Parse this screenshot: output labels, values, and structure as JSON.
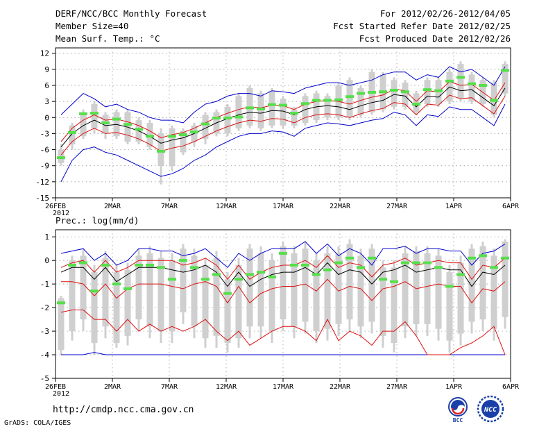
{
  "header": {
    "title": "DERF/NCC/BCC Monthly Forecast",
    "member_size": "Member Size=40",
    "variable": "Mean Surf. Temp.: °C",
    "forecast_period": "For 2012/02/26-2012/04/05",
    "refer_date": "Fcst Started Refer Date 2012/02/25",
    "produced_date": "Fcst Produced Date 2012/02/26"
  },
  "footer": {
    "url": "http://cmdp.ncc.cma.gov.cn",
    "credit": "GrADS: COLA/IGES",
    "logo_left_text": "BCC",
    "logo_right_text": "NCC"
  },
  "colors": {
    "box": "#cfcfcf",
    "mean": "#55e04a",
    "median": "#000000",
    "inner": "#dd1111",
    "outer": "#0000cc",
    "grid": "#888888"
  },
  "x_ticks": [
    "26FEB\n2012",
    "2MAR",
    "7MAR",
    "12MAR",
    "17MAR",
    "22MAR",
    "27MAR",
    "1APR",
    "6APR"
  ],
  "chart_data": [
    {
      "type": "line",
      "title": "Mean Surf. Temp.: °C",
      "xlabel": "",
      "ylabel": "°C",
      "days": 41,
      "xlim": [
        0,
        40
      ],
      "ylim": [
        -15,
        13
      ],
      "yticks": [
        12,
        9,
        6,
        3,
        0,
        -3,
        -6,
        -9,
        -12,
        -15
      ],
      "median": [
        -5.5,
        -3,
        -1.5,
        -0.5,
        -1.5,
        -1.3,
        -1.8,
        -2.5,
        -3.5,
        -4.8,
        -4.2,
        -3.8,
        -3,
        -2,
        -1,
        -0.2,
        0.5,
        1,
        0.8,
        1.3,
        1.2,
        0.5,
        1.5,
        2,
        2.2,
        2,
        1.5,
        2.2,
        2.8,
        3.2,
        4.3,
        4,
        2,
        4,
        3.8,
        5.7,
        5,
        5.2,
        3.7,
        2.2,
        5.5
      ],
      "inner_upper": [
        -4.5,
        -2,
        -0.5,
        0.5,
        -0.5,
        -0.3,
        -0.8,
        -1.5,
        -2.5,
        -3.8,
        -3.2,
        -2.8,
        -2,
        -1,
        0,
        0.8,
        1.5,
        2,
        1.8,
        2.3,
        2.2,
        1.5,
        2.5,
        3,
        3.2,
        3,
        2.5,
        3.2,
        3.8,
        4.2,
        5.3,
        5,
        3,
        5,
        4.8,
        6.7,
        6,
        6.2,
        4.7,
        3.2,
        6.5
      ],
      "inner_lower": [
        -7,
        -4.5,
        -3,
        -2,
        -3,
        -2.8,
        -3.3,
        -4,
        -5,
        -6.3,
        -5.7,
        -5.3,
        -4.5,
        -3.5,
        -2.5,
        -1.7,
        -1,
        -0.5,
        -0.7,
        -0.2,
        -0.3,
        -1,
        0,
        0.5,
        0.7,
        0.5,
        0,
        0.7,
        1.3,
        1.7,
        2.8,
        2.5,
        0.5,
        2.5,
        2.3,
        4.2,
        3.5,
        3.7,
        2.2,
        0.7,
        4
      ],
      "outer_upper": [
        0.5,
        2.5,
        4.5,
        3.5,
        2,
        2.5,
        1.5,
        1,
        0,
        -0.5,
        -0.5,
        -1,
        1,
        2.5,
        3,
        4,
        4.5,
        4.5,
        4,
        5,
        4.8,
        4.5,
        5.5,
        6,
        6.5,
        6.5,
        6,
        6.5,
        7,
        8,
        8.5,
        8.5,
        7,
        8,
        7.5,
        9.5,
        8.5,
        9,
        7.5,
        6,
        9.5
      ],
      "outer_lower": [
        -12,
        -8,
        -6,
        -5.5,
        -6.5,
        -7,
        -8,
        -9,
        -10,
        -11,
        -10.5,
        -9.5,
        -8,
        -7,
        -5.5,
        -4.5,
        -3.5,
        -3,
        -3,
        -2.5,
        -2.7,
        -3.5,
        -2,
        -1.5,
        -1,
        -1.2,
        -1.5,
        -1,
        -0.5,
        -0.2,
        1,
        0.5,
        -1.5,
        0.5,
        0.2,
        2,
        1.5,
        1.5,
        0,
        -1.5,
        2.5
      ],
      "mean": [
        -7.5,
        -2.8,
        0.7,
        0.8,
        -1,
        -0.3,
        -1.3,
        -2.2,
        -3.5,
        -6.3,
        -3.5,
        -3.2,
        -2.7,
        -1.2,
        -0.1,
        -0.1,
        0.1,
        1.8,
        1.6,
        2.4,
        2.3,
        0.8,
        2.6,
        3.2,
        3.2,
        3.3,
        3.9,
        4.5,
        4.7,
        4.8,
        5.1,
        4.8,
        2.5,
        5.2,
        5,
        6.8,
        7.5,
        6.3,
        6,
        3.2,
        8.8
      ],
      "box_top": [
        -6,
        -1.5,
        1,
        2.5,
        0.5,
        1,
        1,
        -0.5,
        -1,
        -3,
        -2,
        -2.5,
        -1.5,
        0.5,
        1,
        2,
        4,
        5.5,
        4.5,
        5,
        3.5,
        1.5,
        4,
        4.5,
        4,
        6,
        7,
        5.5,
        8.5,
        8,
        7,
        6.5,
        4.5,
        7,
        7,
        8.5,
        10,
        8,
        7,
        6.5,
        10
      ],
      "box_bottom": [
        -8.5,
        -5,
        -3.5,
        -2,
        -3,
        -3.5,
        -4.5,
        -4.5,
        -5.5,
        -9,
        -9,
        -6.5,
        -4.5,
        -4,
        -3,
        -3,
        -2,
        -1.5,
        -2,
        -1.5,
        -1.5,
        -1.5,
        -1,
        -0.5,
        0,
        0,
        0,
        0.5,
        1,
        1.5,
        2,
        2,
        1,
        2.5,
        2.5,
        3,
        3.5,
        3,
        2.5,
        0.5,
        4.5
      ],
      "whisker_top": [
        -5,
        -1,
        1.5,
        3,
        1,
        1.5,
        1.5,
        0,
        -0.5,
        -2,
        -1.5,
        -2,
        -1,
        1,
        1.5,
        2.5,
        4.5,
        6,
        5,
        5.5,
        4,
        2,
        4.5,
        5,
        4.5,
        6.5,
        7.5,
        6,
        9,
        8.5,
        7.5,
        7,
        5,
        7.5,
        7.5,
        9,
        10.5,
        8.5,
        7.5,
        7,
        10.5
      ],
      "whisker_bottom": [
        -9,
        -6,
        -4,
        -3,
        -4,
        -4,
        -5,
        -5,
        -6,
        -12.5,
        -10,
        -7,
        -5.5,
        -5,
        -3.5,
        -3.5,
        -2.5,
        -2,
        -2.5,
        -2,
        -2,
        -2,
        -1.5,
        -1,
        -0.5,
        -0.5,
        -0.5,
        0,
        0.5,
        1,
        1.5,
        1.5,
        0.5,
        2,
        2,
        2.5,
        3,
        2.5,
        2,
        0,
        4
      ]
    },
    {
      "type": "line",
      "title": "Prec.: log(mm/d)",
      "xlabel": "",
      "ylabel": "log(mm/d)",
      "days": 41,
      "xlim": [
        0,
        40
      ],
      "ylim": [
        -5,
        1.3
      ],
      "yticks": [
        1,
        0,
        -1,
        -2,
        -3,
        -4,
        -5
      ],
      "median": [
        -0.5,
        -0.3,
        -0.3,
        -0.8,
        -0.3,
        -0.9,
        -0.6,
        -0.3,
        -0.3,
        -0.3,
        -0.4,
        -0.5,
        -0.4,
        -0.2,
        -0.5,
        -1.1,
        -0.5,
        -1.1,
        -0.8,
        -0.6,
        -0.5,
        -0.5,
        -0.3,
        -0.6,
        -0.1,
        -0.6,
        -0.4,
        -0.5,
        -1,
        -0.5,
        -0.4,
        -0.2,
        -0.5,
        -0.4,
        -0.3,
        -0.4,
        -0.4,
        -1.1,
        -0.5,
        -0.6,
        -0.2
      ],
      "inner_upper": [
        -0.3,
        -0.1,
        0,
        -0.5,
        0,
        -0.5,
        -0.3,
        0,
        0,
        0,
        0,
        -0.2,
        -0.1,
        0.1,
        -0.2,
        -0.8,
        -0.2,
        -0.8,
        -0.5,
        -0.3,
        -0.2,
        -0.2,
        0,
        -0.3,
        0.2,
        -0.3,
        -0.1,
        -0.2,
        -0.7,
        -0.2,
        -0.1,
        0.1,
        -0.2,
        -0.1,
        0,
        -0.1,
        -0.1,
        -0.8,
        -0.2,
        -0.3,
        0.1
      ],
      "inner_lower": [
        -0.9,
        -0.9,
        -1,
        -1.5,
        -1,
        -1.6,
        -1.2,
        -1,
        -1,
        -1,
        -1.1,
        -1.2,
        -1,
        -0.9,
        -1.1,
        -1.8,
        -1.1,
        -1.8,
        -1.4,
        -1.2,
        -1.1,
        -1.1,
        -1,
        -1.3,
        -0.8,
        -1.3,
        -1.1,
        -1.2,
        -1.7,
        -1.2,
        -1.1,
        -0.9,
        -1.2,
        -1.1,
        -1,
        -1.1,
        -1.1,
        -1.8,
        -1.2,
        -1.3,
        -0.9
      ],
      "lower_red": [
        -2.2,
        -2.1,
        -2.1,
        -2.5,
        -2.5,
        -3,
        -2.5,
        -3,
        -2.7,
        -3,
        -2.8,
        -3,
        -2.8,
        -2.5,
        -3,
        -3.4,
        -3,
        -3.6,
        -3.3,
        -3,
        -2.8,
        -2.8,
        -3,
        -3.4,
        -2.5,
        -3.4,
        -3,
        -3.2,
        -3.6,
        -3,
        -3,
        -2.6,
        -3.2,
        -4,
        -4,
        -4,
        -3.7,
        -3.5,
        -3.2,
        -2.8,
        -4
      ],
      "outer_upper": [
        0.3,
        0.4,
        0.5,
        0,
        0.3,
        -0.2,
        0,
        0.5,
        0.5,
        0.4,
        0.4,
        0.2,
        0.3,
        0.5,
        0.1,
        -0.3,
        0.3,
        0,
        0.3,
        0.5,
        0.5,
        0.5,
        0.8,
        0.3,
        0.7,
        0.2,
        0.5,
        0.3,
        -0.2,
        0.5,
        0.5,
        0.6,
        0.3,
        0.5,
        0.5,
        0.4,
        0.4,
        -0.2,
        0.3,
        0.4,
        0.7
      ],
      "outer_lower": [
        -4,
        -4,
        -4,
        -3.9,
        -4,
        -4,
        -4,
        -4,
        -4,
        -4,
        -4,
        -4,
        -4,
        -4,
        -4,
        -4,
        -4,
        -4,
        -4,
        -4,
        -4,
        -4,
        -4,
        -4,
        -4,
        -4,
        -4,
        -4,
        -4,
        -4,
        -4,
        -4,
        -4,
        -4,
        -4,
        -4,
        -4,
        -4,
        -4,
        -4,
        -4
      ],
      "mean": [
        -1.8,
        -0.2,
        -0.1,
        -1.3,
        -0.2,
        -1,
        -1.2,
        -0.2,
        -0.2,
        -0.3,
        -0.8,
        0,
        -0.3,
        -0.8,
        -0.6,
        -1.4,
        -0.8,
        -0.6,
        -0.5,
        -0.7,
        0.3,
        -0.2,
        -0.2,
        -0.6,
        -0.4,
        -0.1,
        0.1,
        -0.3,
        0.1,
        -0.8,
        -0.9,
        -0.1,
        -0.1,
        -0.1,
        -0.3,
        -1.1,
        -0.6,
        0.1,
        0.2,
        -0.3,
        0.1
      ],
      "box_top": [
        -1.6,
        0,
        0.2,
        -0.5,
        0.1,
        -0.5,
        -0.4,
        0.2,
        0.3,
        0.1,
        0,
        0.5,
        0.2,
        -0.2,
        0.1,
        -0.8,
        -0.2,
        0.5,
        0.3,
        0,
        0.6,
        0.3,
        0.5,
        0,
        0.3,
        0.3,
        0.7,
        0.2,
        0.5,
        -0.3,
        -0.3,
        0.3,
        0.4,
        0.3,
        0.2,
        -0.5,
        -0.1,
        0.5,
        0.6,
        0.2,
        0.8
      ],
      "box_bottom": [
        -3.8,
        -3,
        -2.5,
        -3.5,
        -2.8,
        -3.5,
        -3.2,
        -2.5,
        -2.8,
        -3,
        -3,
        -2.2,
        -2.8,
        -3.3,
        -3.2,
        -3.5,
        -3.3,
        -2.8,
        -2.8,
        -3,
        -2.5,
        -2.8,
        -2.6,
        -3,
        -2.9,
        -2.7,
        -2.5,
        -2.8,
        -2.6,
        -3.2,
        -3.5,
        -2.8,
        -2.7,
        -2.7,
        -2.9,
        -3.4,
        -3.1,
        -2.6,
        -2.5,
        -2.9,
        -2.4
      ],
      "whisker_top": [
        -1.5,
        0.2,
        0.5,
        -0.2,
        0.4,
        -0.2,
        -0.1,
        0.5,
        0.6,
        0.4,
        0.3,
        0.7,
        0.5,
        0.1,
        0.4,
        -0.5,
        0.1,
        0.7,
        0.6,
        0.3,
        0.8,
        0.6,
        0.8,
        0.3,
        0.6,
        0.6,
        0.9,
        0.5,
        0.7,
        0,
        0,
        0.6,
        0.6,
        0.6,
        0.5,
        -0.2,
        0.2,
        0.7,
        0.8,
        0.5,
        0.9
      ],
      "whisker_bottom": [
        -4,
        -3.4,
        -3,
        -4,
        -3.3,
        -3.7,
        -3.6,
        -3,
        -3.3,
        -3.5,
        -3.5,
        -2.7,
        -3.3,
        -3.7,
        -3.7,
        -3.9,
        -3.7,
        -3.3,
        -3.3,
        -3.5,
        -3,
        -3.3,
        -3.1,
        -3.5,
        -3.4,
        -3.2,
        -3,
        -3.3,
        -3.1,
        -3.7,
        -3.9,
        -3.3,
        -3.2,
        -3.2,
        -3.4,
        -3.9,
        -3.6,
        -3.1,
        -3,
        -3.4,
        -2.9
      ]
    }
  ]
}
